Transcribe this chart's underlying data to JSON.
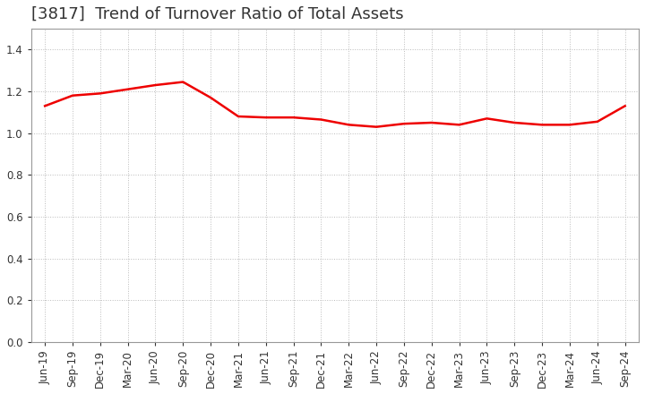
{
  "title": "[3817]  Trend of Turnover Ratio of Total Assets",
  "x_labels": [
    "Jun-19",
    "Sep-19",
    "Dec-19",
    "Mar-20",
    "Jun-20",
    "Sep-20",
    "Dec-20",
    "Mar-21",
    "Jun-21",
    "Sep-21",
    "Dec-21",
    "Mar-22",
    "Jun-22",
    "Sep-22",
    "Dec-22",
    "Mar-23",
    "Jun-23",
    "Sep-23",
    "Dec-23",
    "Mar-24",
    "Jun-24",
    "Sep-24"
  ],
  "y_values": [
    1.13,
    1.18,
    1.19,
    1.21,
    1.23,
    1.245,
    1.17,
    1.08,
    1.075,
    1.075,
    1.065,
    1.04,
    1.03,
    1.045,
    1.05,
    1.04,
    1.07,
    1.05,
    1.04,
    1.04,
    1.055,
    1.13
  ],
  "line_color": "#ee0000",
  "line_width": 1.8,
  "ylim": [
    0.0,
    1.5
  ],
  "yticks": [
    0.0,
    0.2,
    0.4,
    0.6,
    0.8,
    1.0,
    1.2,
    1.4
  ],
  "grid_color": "#bbbbbb",
  "grid_linestyle": ":",
  "grid_linewidth": 0.7,
  "background_color": "#ffffff",
  "plot_bg_color": "#f5f5f5",
  "title_fontsize": 13,
  "title_color": "#333333",
  "tick_fontsize": 8.5,
  "tick_color": "#333333",
  "fig_width": 7.2,
  "fig_height": 4.4,
  "dpi": 100
}
